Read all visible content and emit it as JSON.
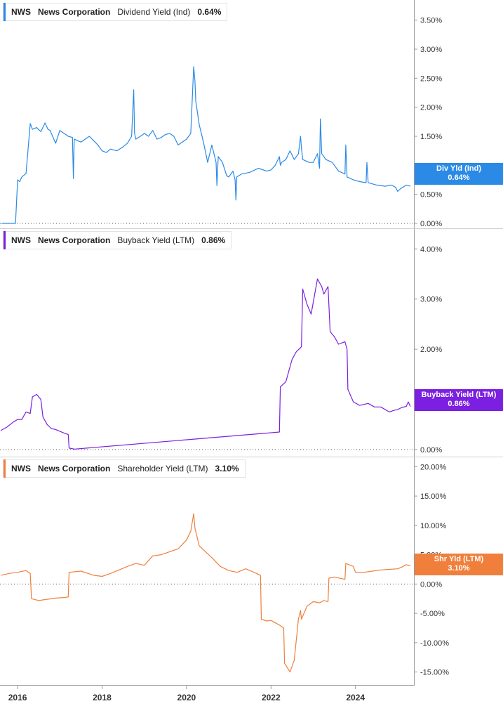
{
  "colors": {
    "dividend": "#2a8ae6",
    "buyback": "#7b1fe0",
    "shareholder": "#f07f3c"
  },
  "chart_data": [
    {
      "type": "line",
      "title": "Dividend Yield (Ind)",
      "legend": {
        "ticker": "NWS",
        "company": "News Corporation",
        "metric": "Dividend Yield (Ind)",
        "value": "0.64%"
      },
      "tag": {
        "line1": "Div Yld (Ind)",
        "line2": "0.64%"
      },
      "ylim": [
        0,
        3.75
      ],
      "yticks": [
        "3.50%",
        "3.00%",
        "2.50%",
        "2.00%",
        "1.50%",
        "1.00%",
        "0.50%",
        "0.00%"
      ],
      "ytick_values": [
        3.5,
        3.0,
        2.5,
        2.0,
        1.5,
        1.0,
        0.5,
        0.0
      ],
      "series": [
        {
          "name": "Dividend Yield (Ind)",
          "x": [
            2015.62,
            2015.95,
            2016.0,
            2016.05,
            2016.1,
            2016.2,
            2016.3,
            2016.35,
            2016.45,
            2016.55,
            2016.65,
            2016.72,
            2016.77,
            2016.9,
            2017.0,
            2017.1,
            2017.2,
            2017.3,
            2017.32,
            2017.34,
            2017.5,
            2017.7,
            2017.9,
            2018.0,
            2018.1,
            2018.2,
            2018.35,
            2018.5,
            2018.6,
            2018.7,
            2018.75,
            2018.77,
            2018.8,
            2018.95,
            2019.0,
            2019.1,
            2019.2,
            2019.3,
            2019.4,
            2019.5,
            2019.6,
            2019.7,
            2019.8,
            2019.9,
            2020.0,
            2020.1,
            2020.17,
            2020.2,
            2020.22,
            2020.3,
            2020.4,
            2020.5,
            2020.6,
            2020.7,
            2020.72,
            2020.75,
            2020.85,
            2020.95,
            2021.0,
            2021.1,
            2021.15,
            2021.17,
            2021.19,
            2021.3,
            2021.5,
            2021.7,
            2021.9,
            2022.0,
            2022.1,
            2022.2,
            2022.22,
            2022.25,
            2022.35,
            2022.45,
            2022.55,
            2022.65,
            2022.7,
            2022.72,
            2022.75,
            2022.9,
            2023.0,
            2023.1,
            2023.15,
            2023.17,
            2023.2,
            2023.3,
            2023.45,
            2023.6,
            2023.75,
            2023.77,
            2023.8,
            2023.95,
            2024.1,
            2024.25,
            2024.27,
            2024.3,
            2024.5,
            2024.7,
            2024.85,
            2024.95,
            2025.0,
            2025.07,
            2025.12,
            2025.2,
            2025.3
          ],
          "values": [
            0.0,
            0.0,
            0.75,
            0.72,
            0.8,
            0.86,
            1.72,
            1.62,
            1.65,
            1.58,
            1.73,
            1.62,
            1.6,
            1.38,
            1.6,
            1.55,
            1.5,
            1.48,
            0.77,
            1.45,
            1.4,
            1.5,
            1.35,
            1.25,
            1.22,
            1.28,
            1.25,
            1.32,
            1.38,
            1.5,
            2.3,
            1.55,
            1.45,
            1.52,
            1.55,
            1.5,
            1.6,
            1.45,
            1.48,
            1.53,
            1.55,
            1.5,
            1.35,
            1.4,
            1.45,
            1.55,
            2.7,
            2.45,
            2.1,
            1.7,
            1.4,
            1.05,
            1.35,
            1.05,
            0.65,
            1.15,
            1.05,
            0.82,
            0.8,
            0.9,
            0.75,
            0.4,
            0.8,
            0.85,
            0.88,
            0.95,
            0.9,
            0.92,
            1.0,
            1.15,
            1.0,
            1.05,
            1.1,
            1.25,
            1.1,
            1.2,
            1.5,
            1.3,
            1.1,
            1.05,
            1.05,
            1.2,
            0.95,
            1.8,
            1.2,
            1.1,
            1.05,
            0.9,
            0.85,
            1.35,
            0.8,
            0.75,
            0.72,
            0.7,
            1.05,
            0.7,
            0.66,
            0.64,
            0.66,
            0.62,
            0.55,
            0.6,
            0.62,
            0.66,
            0.64
          ]
        }
      ]
    },
    {
      "type": "line",
      "title": "Buyback Yield (LTM)",
      "legend": {
        "ticker": "NWS",
        "company": "News Corporation",
        "metric": "Buyback Yield (LTM)",
        "value": "0.86%"
      },
      "tag": {
        "line1": "Buyback Yield (LTM)",
        "line2": "0.86%"
      },
      "ylim": [
        0,
        4.2
      ],
      "yticks": [
        "4.00%",
        "3.00%",
        "2.00%",
        "0.00%"
      ],
      "ytick_values": [
        4.0,
        3.0,
        2.0,
        0.0
      ],
      "series": [
        {
          "name": "Buyback Yield (LTM)",
          "x": [
            2015.6,
            2015.75,
            2015.9,
            2016.0,
            2016.1,
            2016.2,
            2016.3,
            2016.35,
            2016.45,
            2016.55,
            2016.6,
            2016.7,
            2016.8,
            2016.9,
            2017.1,
            2017.2,
            2017.22,
            2017.35,
            2022.2,
            2022.22,
            2022.35,
            2022.5,
            2022.6,
            2022.72,
            2022.75,
            2022.85,
            2022.95,
            2023.1,
            2023.2,
            2023.25,
            2023.35,
            2023.4,
            2023.5,
            2023.6,
            2023.75,
            2023.8,
            2023.82,
            2023.95,
            2024.1,
            2024.3,
            2024.45,
            2024.6,
            2024.8,
            2024.9,
            2025.0,
            2025.1,
            2025.2,
            2025.25,
            2025.3
          ],
          "values": [
            0.38,
            0.45,
            0.55,
            0.6,
            0.6,
            0.75,
            0.72,
            1.05,
            1.1,
            1.0,
            0.65,
            0.5,
            0.42,
            0.4,
            0.33,
            0.3,
            0.03,
            0.01,
            0.35,
            1.25,
            1.35,
            1.8,
            1.95,
            2.05,
            3.2,
            2.9,
            2.7,
            3.4,
            3.25,
            3.1,
            3.25,
            2.35,
            2.25,
            2.1,
            2.15,
            2.0,
            1.2,
            0.95,
            0.88,
            0.92,
            0.85,
            0.85,
            0.75,
            0.78,
            0.8,
            0.84,
            0.86,
            0.95,
            0.86
          ]
        }
      ]
    },
    {
      "type": "line",
      "title": "Shareholder Yield (LTM)",
      "legend": {
        "ticker": "NWS",
        "company": "News Corporation",
        "metric": "Shareholder Yield (LTM)",
        "value": "3.10%"
      },
      "tag": {
        "line1": "Shr Yld (LTM)",
        "line2": "3.10%"
      },
      "ylim": [
        -16,
        21
      ],
      "yticks": [
        "20.00%",
        "15.00%",
        "10.00%",
        "5.00%",
        "0.00%",
        "-5.00%",
        "-10.00%",
        "-15.00%"
      ],
      "ytick_values": [
        20,
        15,
        10,
        5,
        0,
        -5,
        -10,
        -15
      ],
      "series": [
        {
          "name": "Shareholder Yield (LTM)",
          "x": [
            2015.6,
            2015.8,
            2016.0,
            2016.2,
            2016.3,
            2016.33,
            2016.5,
            2016.7,
            2016.9,
            2017.1,
            2017.2,
            2017.22,
            2017.5,
            2017.8,
            2018.0,
            2018.2,
            2018.4,
            2018.6,
            2018.8,
            2019.0,
            2019.2,
            2019.4,
            2019.6,
            2019.8,
            2020.0,
            2020.1,
            2020.17,
            2020.2,
            2020.3,
            2020.45,
            2020.6,
            2020.8,
            2021.0,
            2021.2,
            2021.4,
            2021.6,
            2021.75,
            2021.77,
            2021.9,
            2022.0,
            2022.2,
            2022.3,
            2022.32,
            2022.45,
            2022.55,
            2022.65,
            2022.7,
            2022.72,
            2022.85,
            2023.0,
            2023.15,
            2023.25,
            2023.35,
            2023.37,
            2023.5,
            2023.75,
            2023.77,
            2023.95,
            2024.0,
            2024.2,
            2024.4,
            2024.6,
            2024.8,
            2025.0,
            2025.1,
            2025.2,
            2025.3
          ],
          "values": [
            1.5,
            1.8,
            2.0,
            2.3,
            1.8,
            -2.5,
            -2.8,
            -2.6,
            -2.4,
            -2.3,
            -2.2,
            2.0,
            2.2,
            1.5,
            1.3,
            1.8,
            2.4,
            3.0,
            3.5,
            3.2,
            4.8,
            5.0,
            5.5,
            6.0,
            7.5,
            9.0,
            12.0,
            9.5,
            6.5,
            5.5,
            4.5,
            3.0,
            2.3,
            2.0,
            2.6,
            2.0,
            1.5,
            -6.0,
            -6.3,
            -6.2,
            -7.0,
            -7.5,
            -13.5,
            -15.0,
            -13.0,
            -6.0,
            -4.5,
            -6.0,
            -3.8,
            -3.0,
            -3.2,
            -2.8,
            -3.0,
            1.0,
            1.2,
            0.8,
            3.5,
            3.0,
            2.0,
            2.0,
            2.2,
            2.4,
            2.5,
            2.6,
            2.9,
            3.3,
            3.1
          ]
        }
      ]
    }
  ],
  "x_axis": {
    "labels": [
      "2016",
      "2018",
      "2020",
      "2022",
      "2024"
    ],
    "values": [
      2016,
      2018,
      2020,
      2022,
      2024
    ],
    "range": [
      2015.6,
      2025.4
    ]
  }
}
